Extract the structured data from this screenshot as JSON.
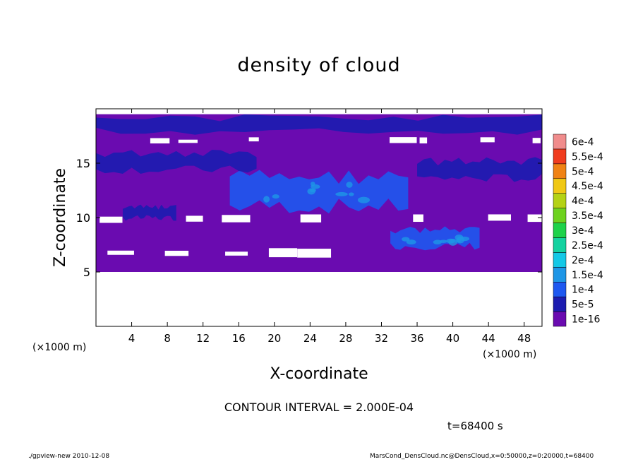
{
  "chart_data": {
    "type": "heatmap",
    "title": "density of cloud",
    "xlabel": "X-coordinate",
    "ylabel": "Z-coordinate",
    "x_unit_left": "(×1000 m)",
    "x_unit_right": "(×1000 m)",
    "xlim": [
      0,
      50
    ],
    "ylim": [
      0,
      20
    ],
    "x_ticks": [
      {
        "value": 4,
        "label": "4"
      },
      {
        "value": 8,
        "label": "8"
      },
      {
        "value": 12,
        "label": "12"
      },
      {
        "value": 16,
        "label": "16"
      },
      {
        "value": 20,
        "label": "20"
      },
      {
        "value": 24,
        "label": "24"
      },
      {
        "value": 28,
        "label": "28"
      },
      {
        "value": 32,
        "label": "32"
      },
      {
        "value": 36,
        "label": "36"
      },
      {
        "value": 40,
        "label": "40"
      },
      {
        "value": 44,
        "label": "44"
      },
      {
        "value": 48,
        "label": "48"
      }
    ],
    "y_ticks": [
      {
        "value": 5,
        "label": "5"
      },
      {
        "value": 10,
        "label": "10"
      },
      {
        "value": 15,
        "label": "15"
      }
    ],
    "colorbar": [
      {
        "label": "1e-16",
        "color": "#6a0bb0"
      },
      {
        "label": "5e-5",
        "color": "#1c1cb0"
      },
      {
        "label": "1e-4",
        "color": "#1e58f0"
      },
      {
        "label": "1.5e-4",
        "color": "#1e96e6"
      },
      {
        "label": "2e-4",
        "color": "#14c8e6"
      },
      {
        "label": "2.5e-4",
        "color": "#14d2a0"
      },
      {
        "label": "3e-4",
        "color": "#1ed24a"
      },
      {
        "label": "3.5e-4",
        "color": "#6ed21e"
      },
      {
        "label": "4e-4",
        "color": "#b4d214"
      },
      {
        "label": "4.5e-4",
        "color": "#f0c814"
      },
      {
        "label": "5e-4",
        "color": "#f08214"
      },
      {
        "label": "5.5e-4",
        "color": "#f03c1e"
      },
      {
        "label": "6e-4",
        "color": "#f08c8c"
      }
    ],
    "regions": {
      "cloud_base_z": 5,
      "cloud_top_z": 19.5,
      "clear_gap_bands_z": [
        [
          6.3,
          7.2
        ],
        [
          9.5,
          10.3
        ],
        [
          16.8,
          17.4
        ]
      ],
      "dense_blobs": [
        {
          "x": [
            15,
            35
          ],
          "z": [
            10.3,
            14.5
          ],
          "level": "1e-4"
        },
        {
          "x": [
            3,
            9
          ],
          "z": [
            9.7,
            11.2
          ],
          "level": "5e-5"
        },
        {
          "x": [
            33,
            43
          ],
          "z": [
            7.0,
            9.2
          ],
          "level": "1e-4"
        },
        {
          "x": [
            0,
            50
          ],
          "z": [
            17.6,
            19.5
          ],
          "level": "5e-5"
        },
        {
          "x": [
            0,
            18
          ],
          "z": [
            14.0,
            16.3
          ],
          "level": "5e-5"
        },
        {
          "x": [
            36,
            50
          ],
          "z": [
            13.2,
            15.6
          ],
          "level": "5e-5"
        }
      ]
    }
  },
  "annotations": {
    "contour_interval": "CONTOUR INTERVAL = 2.000E-04",
    "time": "t=68400 s"
  },
  "footer": {
    "left": "./gpview-new  2010-12-08",
    "right": "MarsCond_DensCloud.nc@DensCloud,x=0:50000,z=0:20000,t=68400"
  }
}
